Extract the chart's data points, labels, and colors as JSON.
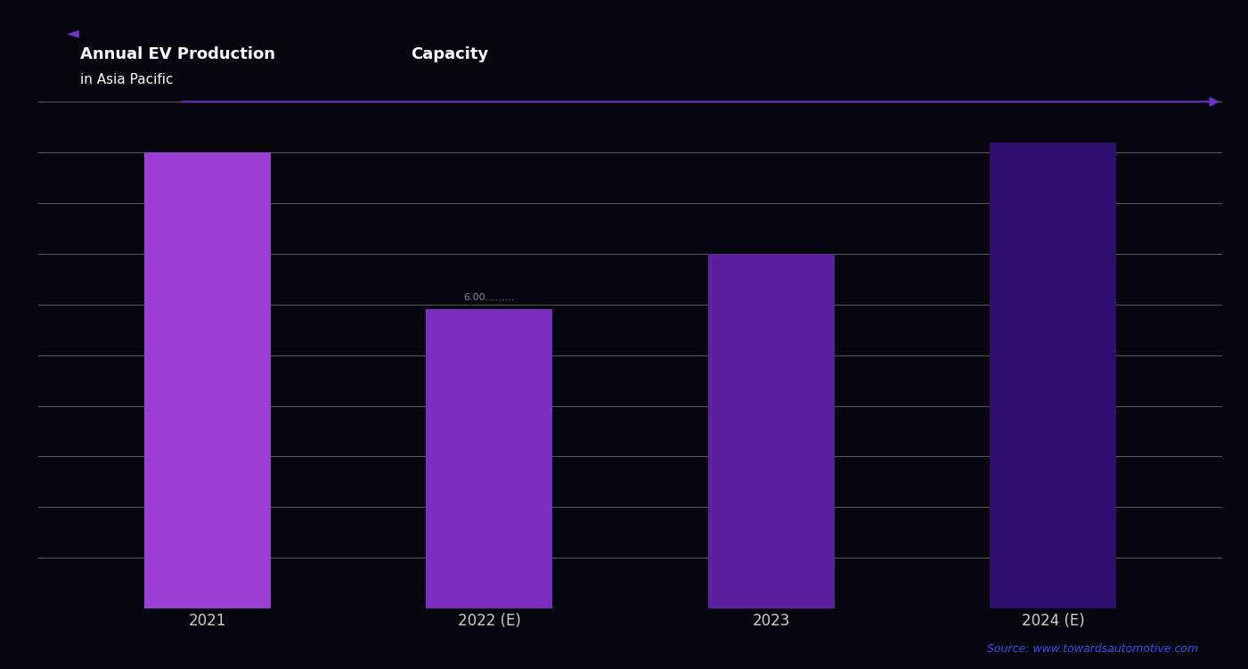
{
  "title": "Annual EV Production",
  "title2": "Capacity",
  "subtitle": "in Asia Pacific",
  "categories": [
    "2021",
    "2022 (E)",
    "2023",
    "2024 (E)"
  ],
  "values": [
    9.0,
    5.9,
    7.0,
    9.2
  ],
  "bar_colors": [
    "#9b3fd4",
    "#7b2dbf",
    "#5c1f9e",
    "#2e0f6e"
  ],
  "ylim": [
    0,
    10.5
  ],
  "yticks": [
    0,
    1,
    2,
    3,
    4,
    5,
    6,
    7,
    8,
    9,
    10
  ],
  "background_color": "#06060e",
  "grid_color": "#b0b0b8",
  "text_color": "#cccccc",
  "source_text": "Source: www.towardsautomotive.com",
  "source_color": "#4444ee",
  "arrow_color": "#7030cc",
  "title_color": "#ffffff",
  "bar_width": 0.45,
  "annotation_text": "6.00.........",
  "annotation_color": "#888899"
}
